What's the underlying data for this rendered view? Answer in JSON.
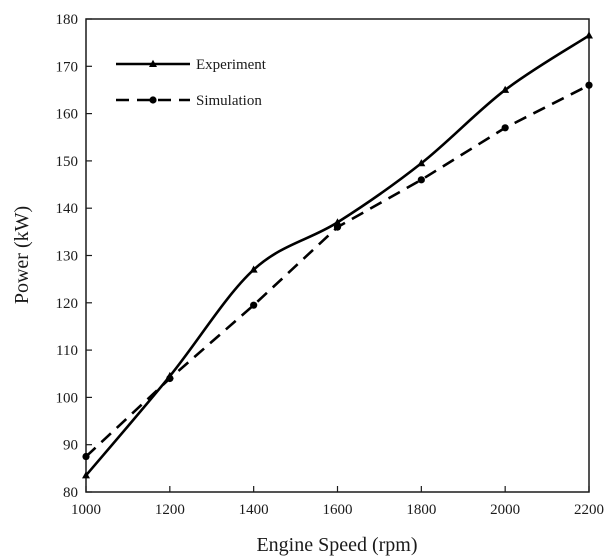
{
  "chart_data": {
    "type": "line",
    "xlabel": "Engine Speed (rpm)",
    "ylabel": "Power (kW)",
    "xlim": [
      1000,
      2200
    ],
    "ylim": [
      80,
      180
    ],
    "xticks": [
      1000,
      1200,
      1400,
      1600,
      1800,
      2000,
      2200
    ],
    "yticks": [
      80,
      90,
      100,
      110,
      120,
      130,
      140,
      150,
      160,
      170,
      180
    ],
    "grid": false,
    "legend_position": "top-left",
    "x": [
      1000,
      1200,
      1400,
      1600,
      1800,
      2000,
      2200
    ],
    "series": [
      {
        "name": "Experiment",
        "values": [
          83.5,
          104.5,
          127,
          137,
          149.5,
          165,
          176.5
        ],
        "line_style": "solid",
        "marker": "triangle",
        "color": "#000000"
      },
      {
        "name": "Simulation",
        "values": [
          87.5,
          104,
          119.5,
          136,
          146,
          157,
          166
        ],
        "line_style": "dashed",
        "marker": "circle",
        "color": "#000000"
      }
    ]
  }
}
